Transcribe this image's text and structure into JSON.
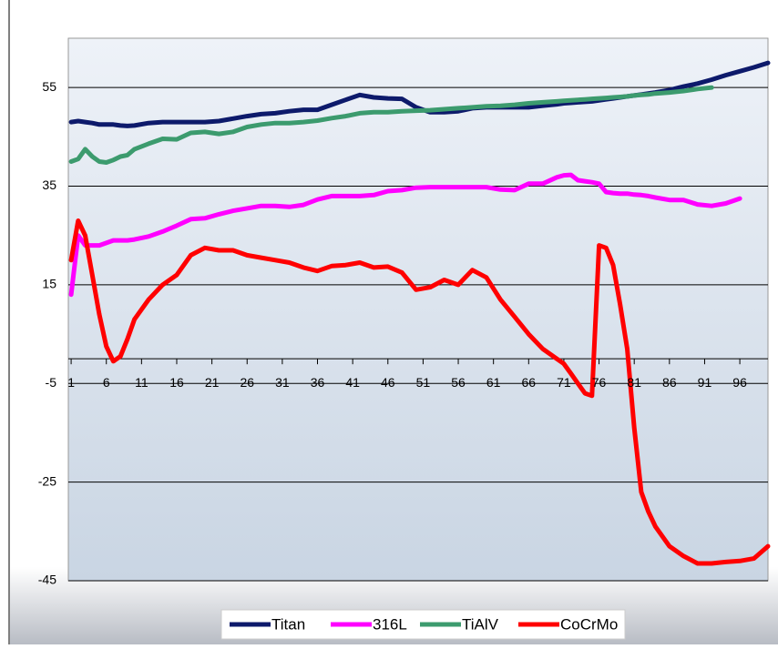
{
  "chart_data": {
    "type": "line",
    "x": [
      1,
      2,
      3,
      4,
      5,
      6,
      7,
      8,
      9,
      10,
      12,
      14,
      16,
      18,
      20,
      22,
      24,
      26,
      28,
      30,
      32,
      34,
      36,
      38,
      40,
      42,
      44,
      46,
      48,
      50,
      52,
      54,
      56,
      58,
      60,
      62,
      64,
      66,
      68,
      70,
      71,
      72,
      73,
      74,
      75,
      76,
      77,
      78,
      79,
      80,
      81,
      82,
      83,
      84,
      86,
      88,
      90,
      92,
      94,
      96,
      98,
      100
    ],
    "series": [
      {
        "name": "Titan",
        "color": "#0d1a6b",
        "values": [
          48,
          48.2,
          48,
          47.8,
          47.5,
          47.5,
          47.5,
          47.3,
          47.2,
          47.3,
          47.8,
          48,
          48,
          48,
          48,
          48.2,
          48.7,
          49.2,
          49.6,
          49.8,
          50.2,
          50.5,
          50.5,
          51.5,
          52.5,
          53.5,
          53,
          52.8,
          52.7,
          51,
          50,
          50,
          50.2,
          50.8,
          51,
          51,
          51,
          51,
          51.3,
          51.6,
          51.8,
          51.9,
          52,
          52.1,
          52.2,
          52.4,
          52.6,
          52.8,
          53,
          53.2,
          53.4,
          53.6,
          53.8,
          54,
          54.5,
          55.2,
          55.8,
          56.6,
          57.5,
          58.3,
          59.1,
          60
        ]
      },
      {
        "name": "316L",
        "color": "#ff00ff",
        "values": [
          13,
          25,
          23,
          23,
          23,
          23.5,
          24,
          24,
          24,
          24.2,
          24.8,
          25.8,
          27,
          28.3,
          28.5,
          29.3,
          30,
          30.5,
          31,
          31,
          30.8,
          31.2,
          32.3,
          33,
          33,
          33,
          33.2,
          34,
          34.2,
          34.7,
          34.8,
          34.8,
          34.8,
          34.8,
          34.8,
          34.3,
          34.2,
          35.5,
          35.5,
          36.8,
          37.2,
          37.3,
          36.2,
          36,
          35.8,
          35.5,
          33.8,
          33.6,
          33.5,
          33.5,
          33.3,
          33.2,
          33,
          32.7,
          32.2,
          32.2,
          31.3,
          31,
          31.5,
          32.5,
          null,
          null
        ]
      },
      {
        "name": "TiAlV",
        "color": "#3c9b6e",
        "values": [
          40,
          40.5,
          42.5,
          41,
          40,
          39.8,
          40.3,
          41,
          41.3,
          42.5,
          43.6,
          44.6,
          44.5,
          45.8,
          46,
          45.6,
          46,
          47,
          47.5,
          47.8,
          47.8,
          48,
          48.3,
          48.8,
          49.2,
          49.8,
          50,
          50,
          50.2,
          50.3,
          50.4,
          50.6,
          50.8,
          51,
          51.2,
          51.3,
          51.5,
          51.8,
          52,
          52.2,
          52.3,
          52.4,
          52.5,
          52.6,
          52.7,
          52.8,
          52.9,
          53,
          53.1,
          53.2,
          53.4,
          53.5,
          53.6,
          53.8,
          54,
          54.3,
          54.7,
          55,
          null,
          null,
          null,
          null
        ]
      },
      {
        "name": "CoCrMo",
        "color": "#ff0000",
        "values": [
          20,
          28,
          25,
          17,
          9,
          2.5,
          -0.5,
          0.5,
          4,
          8,
          12,
          15,
          17,
          21,
          22.5,
          22,
          22,
          21,
          20.5,
          20,
          19.5,
          18.5,
          17.8,
          18.8,
          19,
          19.5,
          18.5,
          18.7,
          17.5,
          14,
          14.5,
          16,
          15,
          18,
          16.5,
          12,
          8.5,
          5,
          2,
          0,
          -1,
          -3,
          -5,
          -7,
          -7.5,
          23,
          22.5,
          19,
          11,
          2,
          -14,
          -27,
          -31,
          -34,
          -38,
          -40,
          -41.5,
          -41.5,
          -41.2,
          -41,
          -40.5,
          -38
        ]
      }
    ],
    "xlim": [
      0.6,
      100
    ],
    "xticks": [
      1,
      6,
      11,
      16,
      21,
      26,
      31,
      36,
      41,
      46,
      51,
      56,
      61,
      66,
      71,
      76,
      81,
      86,
      91,
      96
    ],
    "ylim": [
      -45,
      65
    ],
    "yticks": [
      -45,
      -25,
      -5,
      15,
      35,
      55
    ],
    "grid": true,
    "legend": "bottom"
  }
}
